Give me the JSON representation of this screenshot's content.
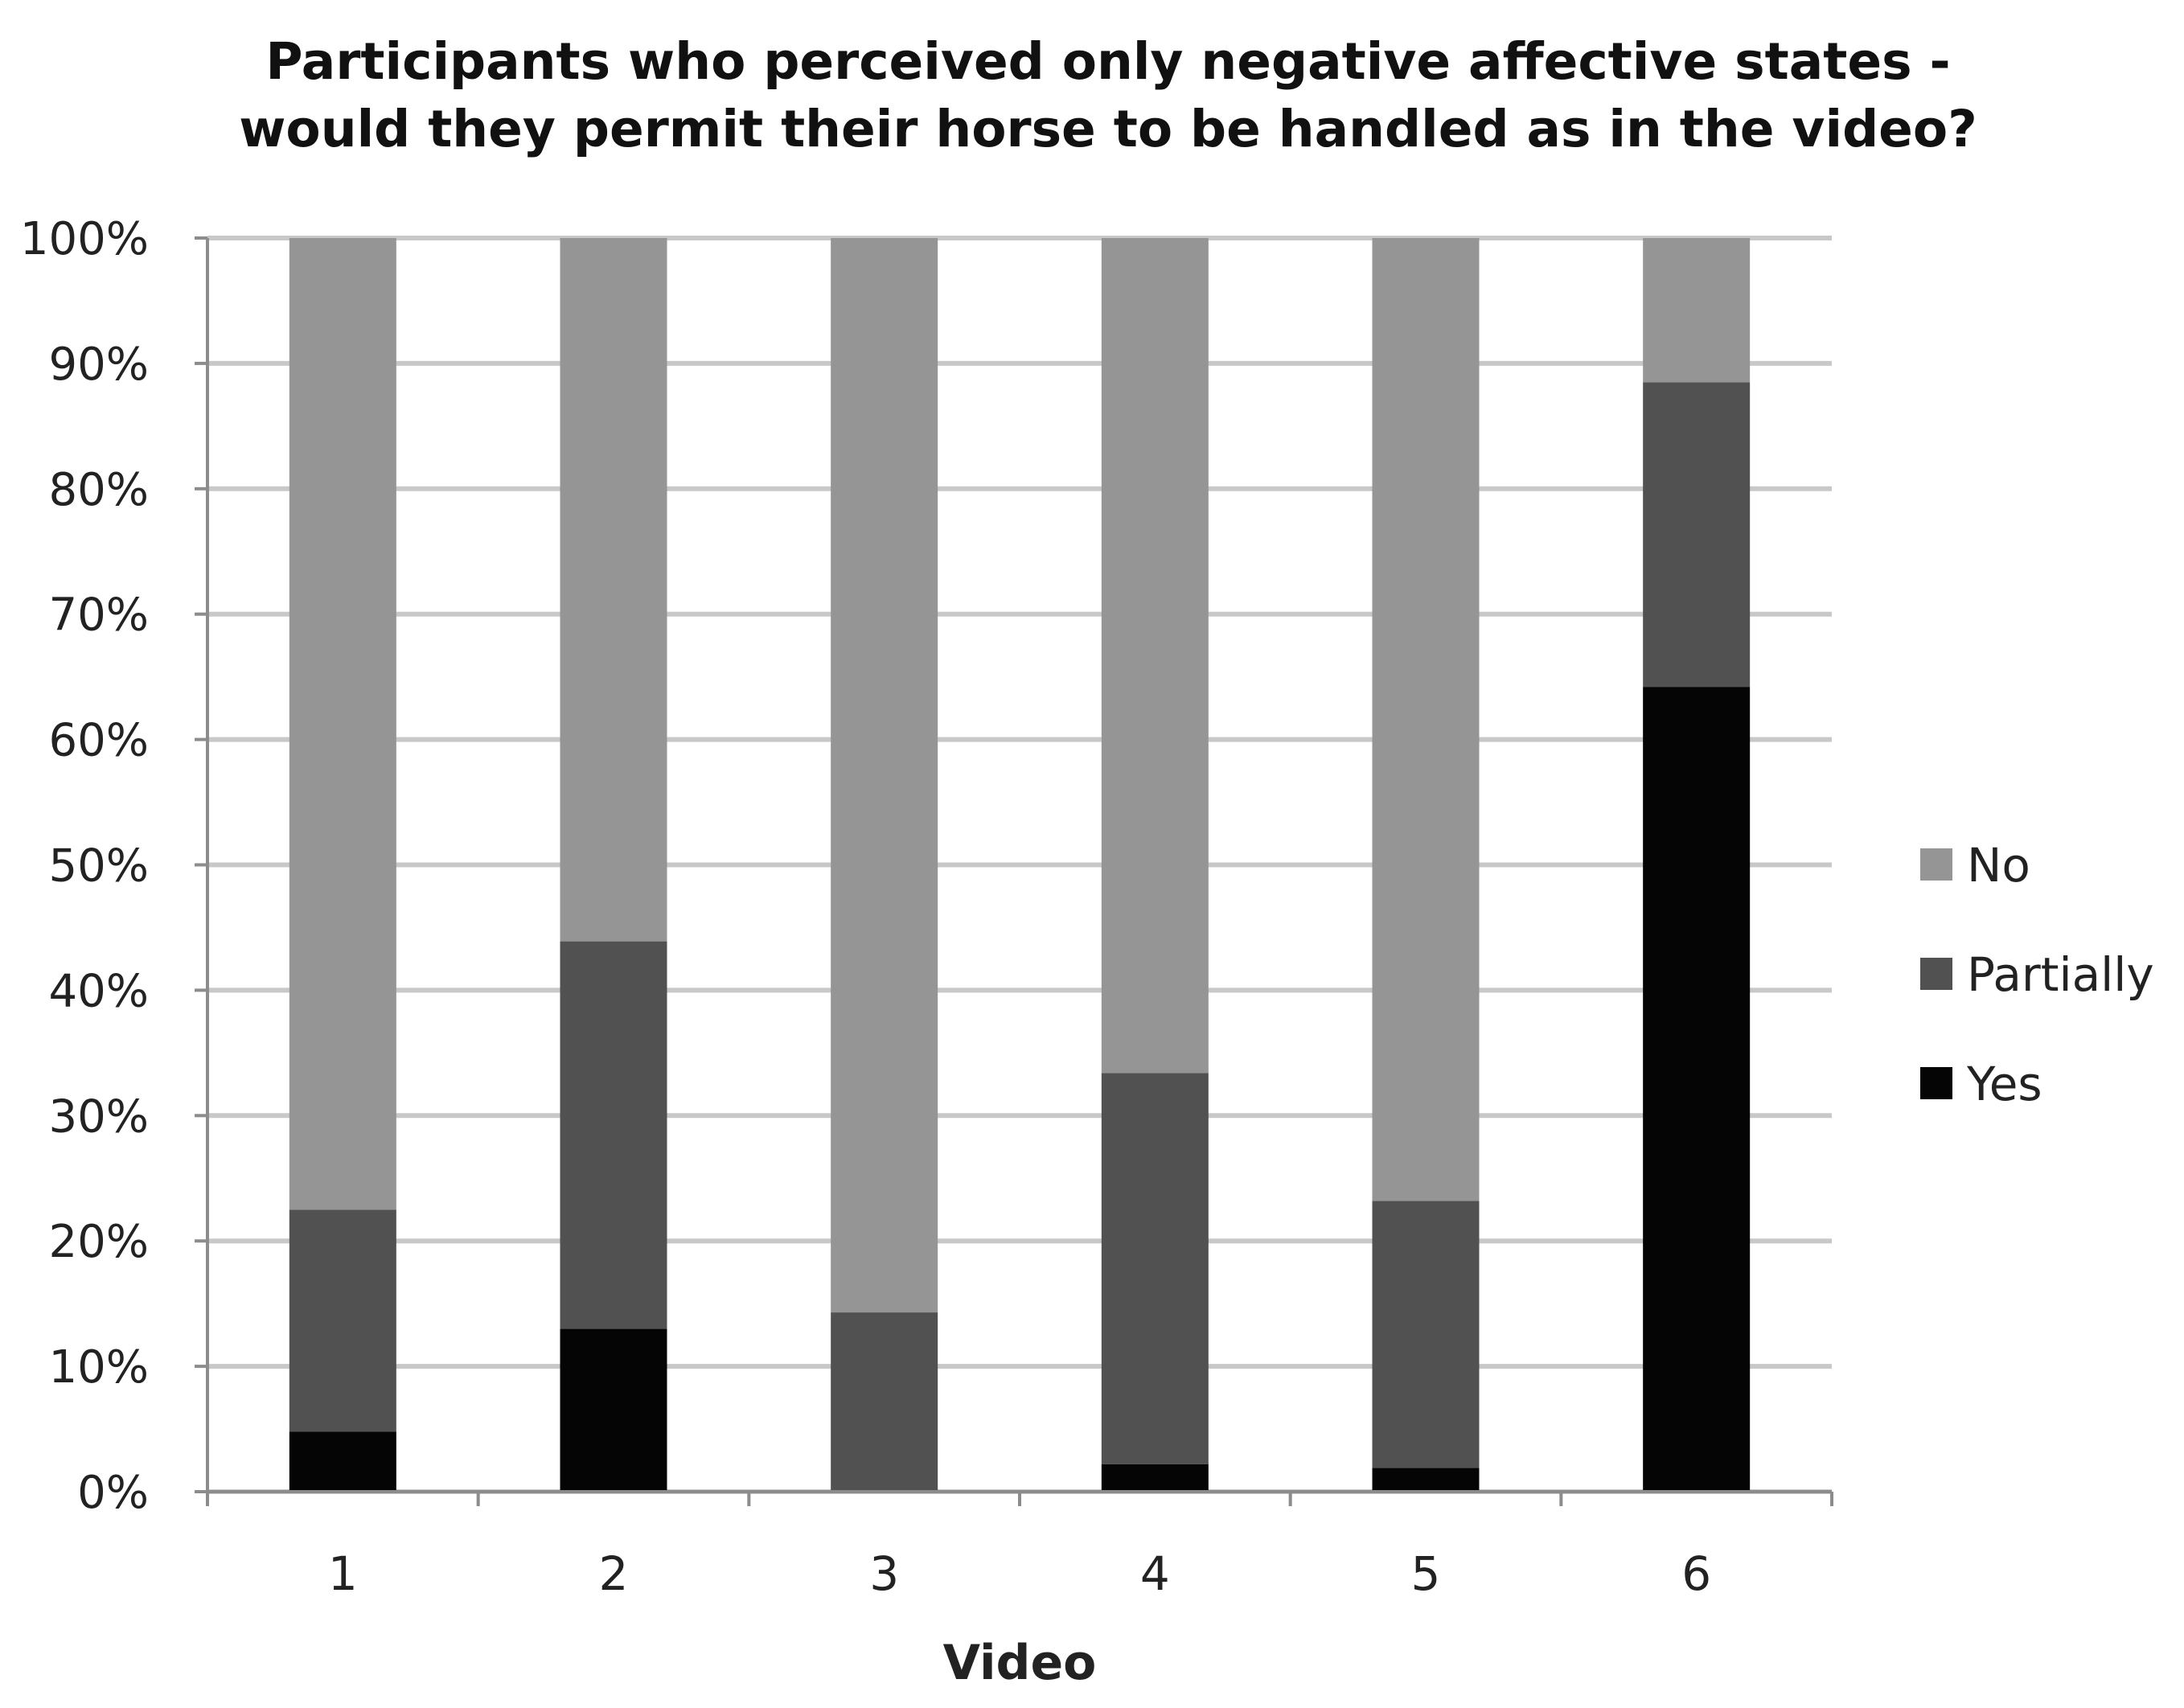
{
  "chart_data": {
    "type": "bar",
    "stacked": true,
    "title_lines": [
      "Participants who perceived only negative affective states -",
      "would they permit their horse to be handled as in the video?"
    ],
    "xlabel": "Video",
    "ylabel": "",
    "categories": [
      "1",
      "2",
      "3",
      "4",
      "5",
      "6"
    ],
    "ylim": [
      0,
      100
    ],
    "yticks": [
      0,
      10,
      20,
      30,
      40,
      50,
      60,
      70,
      80,
      90,
      100
    ],
    "ytick_labels": [
      "0%",
      "10%",
      "20%",
      "30%",
      "40%",
      "50%",
      "60%",
      "70%",
      "80%",
      "90%",
      "100%"
    ],
    "grid": true,
    "legend_position": "right",
    "legend_order": [
      "No",
      "Partially",
      "Yes"
    ],
    "series": [
      {
        "name": "Yes",
        "color": "#050505",
        "values": [
          4.8,
          13.0,
          0.0,
          2.2,
          1.9,
          64.2
        ]
      },
      {
        "name": "Partially",
        "color": "#515151",
        "values": [
          17.7,
          30.9,
          14.3,
          31.2,
          21.3,
          24.3
        ]
      },
      {
        "name": "No",
        "color": "#959595",
        "values": [
          77.5,
          56.1,
          85.7,
          66.6,
          76.8,
          11.5
        ]
      }
    ]
  }
}
